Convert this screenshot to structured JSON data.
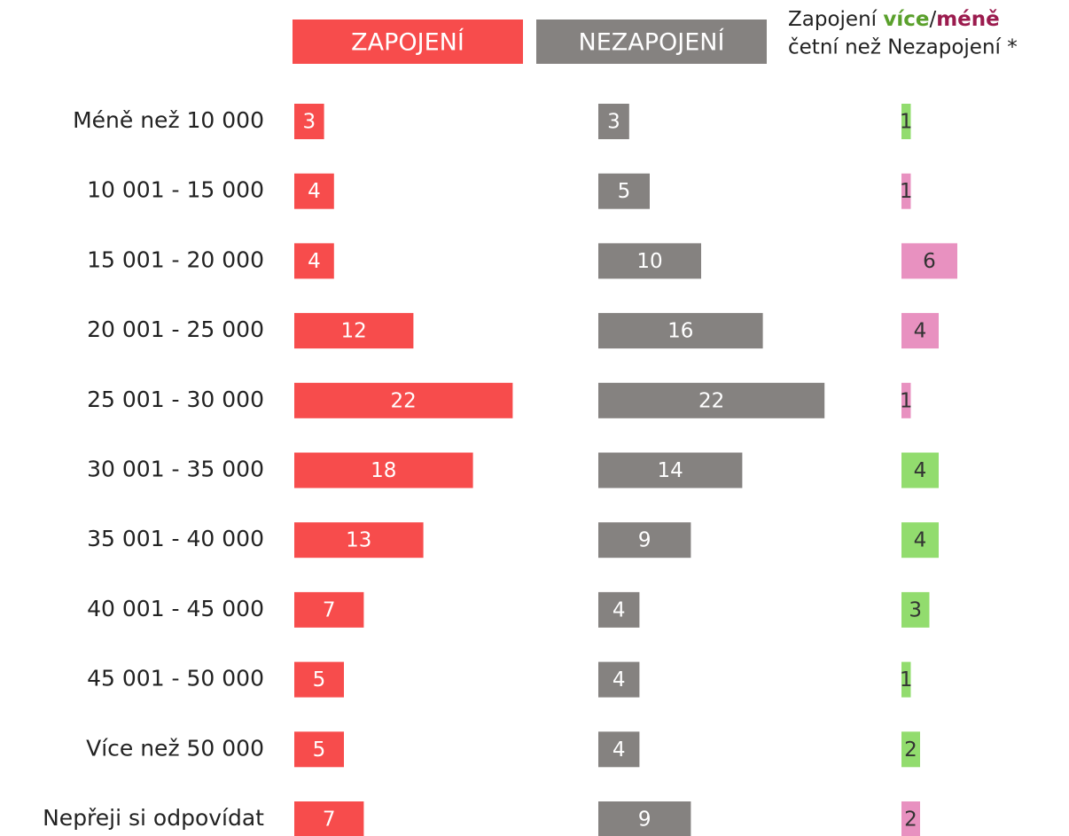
{
  "chart_data": {
    "type": "bar",
    "orientation": "horizontal",
    "categories": [
      "Méně než 10 000",
      "10 001 - 15 000",
      "15 001 - 20 000",
      "20 001 - 25 000",
      "25 001 - 30 000",
      "30 001 - 35 000",
      "35 001 - 40 000",
      "40 001 - 45 000",
      "45 001 - 50 000",
      "Více než 50 000",
      "Nepřeji si odpovídat"
    ],
    "series": [
      {
        "name": "ZAPOJENÍ",
        "color": "#f74c4c",
        "values": [
          3,
          4,
          4,
          12,
          22,
          18,
          13,
          7,
          5,
          5,
          7
        ]
      },
      {
        "name": "NEZAPOJENÍ",
        "color": "#858280",
        "values": [
          3,
          5,
          10,
          16,
          22,
          14,
          9,
          4,
          4,
          4,
          9
        ]
      },
      {
        "name": [
          "Zapojení ",
          "více",
          "/",
          "méně"
        ],
        "name_line2": "četní než Nezapojení *",
        "name_colors": [
          "#222222",
          "#5aa02c",
          "#222222",
          "#9b1b4e"
        ],
        "values": [
          1,
          1,
          6,
          4,
          1,
          4,
          4,
          3,
          1,
          2,
          2
        ],
        "colors": [
          "#92dc6e",
          "#e891c0",
          "#e891c0",
          "#e891c0",
          "#e891c0",
          "#92dc6e",
          "#92dc6e",
          "#92dc6e",
          "#92dc6e",
          "#92dc6e",
          "#e891c0"
        ]
      }
    ]
  }
}
